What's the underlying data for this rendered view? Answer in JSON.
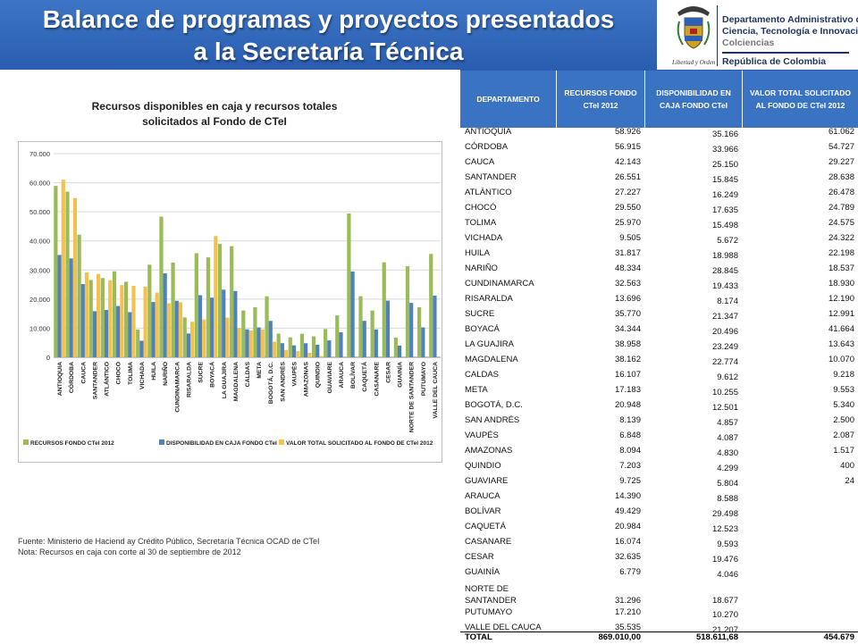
{
  "header": {
    "title_line1": "Balance de programas y proyectos presentados",
    "title_line2": "a la Secretaría Técnica",
    "seal_caption": "Libertad y Orden",
    "org_line1": "Departamento Administrativo de",
    "org_line2": "Ciencia, Tecnología e Innovación",
    "org_line3": "Colciencias",
    "org_line4": "República de Colombia"
  },
  "chart_title_line1": "Recursos disponibles en caja y recursos totales",
  "chart_title_line2": "solicitados al Fondo de CTeI",
  "notes": {
    "source": "Fuente: Ministerio de Haciend ay Crédito Público, Secretaría Técnica OCAD de CTeI",
    "note": "Nota: Recursos en caja con corte al 30 de septiembre de 2012"
  },
  "table": {
    "headers": [
      "DEPARTAMENTO",
      "RECURSOS FONDO CTeI 2012",
      "DISPONIBILIDAD EN CAJA FONDO CTeI",
      "VALOR TOTAL SOLICITADO AL FONDO DE CTeI 2012"
    ],
    "rows": [
      [
        "ANTIOQUIA",
        "58.926",
        "35.166",
        "61.062"
      ],
      [
        "CÓRDOBA",
        "56.915",
        "33.966",
        "54.727"
      ],
      [
        "CAUCA",
        "42.143",
        "25.150",
        "29.227"
      ],
      [
        "SANTANDER",
        "26.551",
        "15.845",
        "28.638"
      ],
      [
        "ATLÁNTICO",
        "27.227",
        "16.249",
        "26.478"
      ],
      [
        "CHOCÓ",
        "29.550",
        "17.635",
        "24.789"
      ],
      [
        "TOLIMA",
        "25.970",
        "15.498",
        "24.575"
      ],
      [
        "VICHADA",
        "9.505",
        "5.672",
        "24.322"
      ],
      [
        "HUILA",
        "31.817",
        "18.988",
        "22.198"
      ],
      [
        "NARIÑO",
        "48.334",
        "28.845",
        "18.537"
      ],
      [
        "CUNDINAMARCA",
        "32.563",
        "19.433",
        "18.930"
      ],
      [
        "RISARALDA",
        "13.696",
        "8.174",
        "12.190"
      ],
      [
        "SUCRE",
        "35.770",
        "21.347",
        "12.991"
      ],
      [
        "BOYACÁ",
        "34.344",
        "20.496",
        "41.664"
      ],
      [
        "LA GUAJIRA",
        "38.958",
        "23.249",
        "13.643"
      ],
      [
        "MAGDALENA",
        "38.162",
        "22.774",
        "10.070"
      ],
      [
        "CALDAS",
        "16.107",
        "9.612",
        "9.218"
      ],
      [
        "META",
        "17.183",
        "10.255",
        "9.553"
      ],
      [
        "BOGOTÁ, D.C.",
        "20.948",
        "12.501",
        "5.340"
      ],
      [
        "SAN ANDRÉS",
        "8.139",
        "4.857",
        "2.500"
      ],
      [
        "VAUPÉS",
        "6.848",
        "4.087",
        "2.087"
      ],
      [
        "AMAZONAS",
        "8.094",
        "4.830",
        "1.517"
      ],
      [
        "QUINDIO",
        "7.203",
        "4.299",
        "400"
      ],
      [
        "GUAVIARE",
        "9.725",
        "5.804",
        "24"
      ],
      [
        "ARAUCA",
        "14.390",
        "8.588",
        ""
      ],
      [
        "BOLÍVAR",
        "49.429",
        "29.498",
        ""
      ],
      [
        "CAQUETÁ",
        "20.984",
        "12.523",
        ""
      ],
      [
        "CASANARE",
        "16.074",
        "9.593",
        ""
      ],
      [
        "CESAR",
        "32.635",
        "19.476",
        ""
      ],
      [
        "GUAINÍA",
        "6.779",
        "4.046",
        ""
      ],
      [
        "NORTE DE SANTANDER",
        "31.296",
        "18.677",
        ""
      ],
      [
        "PUTUMAYO",
        "17.210",
        "10.270",
        ""
      ],
      [
        "VALLE DEL CAUCA",
        "35.535",
        "21.207",
        ""
      ]
    ],
    "total": [
      "TOTAL",
      "869.010,00",
      "518.611,68",
      "454.679"
    ]
  },
  "chart_data": {
    "type": "bar",
    "categories": [
      "ANTIOQUIA",
      "CÓRDOBA",
      "CAUCA",
      "SANTANDER",
      "ATLÁNTICO",
      "CHOCÓ",
      "TOLIMA",
      "VICHADA",
      "HUILA",
      "NARIÑO",
      "CUNDINAMARCA",
      "RISARALDA",
      "SUCRE",
      "BOYACÁ",
      "LA GUAJIRA",
      "MAGDALENA",
      "CALDAS",
      "META",
      "BOGOTÁ, D.C.",
      "SAN ANDRÉS",
      "VAUPÉS",
      "AMAZONAS",
      "QUINDIO",
      "GUAVIARE",
      "ARAUCA",
      "BOLÍVAR",
      "CAQUETÁ",
      "CASANARE",
      "CESAR",
      "GUAINÍA",
      "NORTE DE SANTANDER",
      "PUTUMAYO",
      "VALLE DEL CAUCA"
    ],
    "series": [
      {
        "name": "RECURSOS FONDO CTeI  2012",
        "color": "#9bbb59",
        "values": [
          58926,
          56915,
          42143,
          26551,
          27227,
          29550,
          25970,
          9505,
          31817,
          48334,
          32563,
          13696,
          35770,
          34344,
          38958,
          38162,
          16107,
          17183,
          20948,
          8139,
          6848,
          8094,
          7203,
          9725,
          14390,
          49429,
          20984,
          16074,
          32635,
          6779,
          31296,
          17210,
          35535
        ]
      },
      {
        "name": "DISPONIBILIDAD EN CAJA FONDO CTeI",
        "color": "#4f81bd",
        "values": [
          35166,
          33966,
          25150,
          15845,
          16249,
          17635,
          15498,
          5672,
          18988,
          28845,
          19433,
          8174,
          21347,
          20496,
          23249,
          22774,
          9612,
          10255,
          12501,
          4857,
          4087,
          4830,
          4299,
          5804,
          8588,
          29498,
          12523,
          9593,
          19476,
          4046,
          18677,
          10270,
          21207
        ]
      },
      {
        "name": "VALOR TOTAL SOLICITADO AL FONDO DE CTeI 2012",
        "color": "#f2c14e",
        "values": [
          61062,
          54727,
          29227,
          28638,
          26478,
          24789,
          24575,
          24322,
          22198,
          18537,
          18930,
          12190,
          12991,
          41664,
          13643,
          10070,
          9218,
          9553,
          5340,
          2500,
          2087,
          1517,
          400,
          24,
          0,
          0,
          0,
          0,
          0,
          0,
          0,
          0,
          0
        ]
      }
    ],
    "yticks": [
      "0",
      "10.000",
      "20.000",
      "30.000",
      "40.000",
      "50.000",
      "60.000",
      "70.000"
    ],
    "ylim": [
      0,
      70000
    ],
    "grid": true,
    "legend_position": "bottom"
  }
}
